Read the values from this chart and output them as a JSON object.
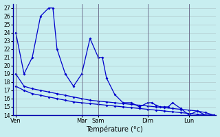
{
  "xlabel": "Température (°c)",
  "background_color": "#c8eef0",
  "grid_color": "#b0c8cc",
  "line_color": "#0000cc",
  "ylim": [
    14,
    27.5
  ],
  "yticks": [
    14,
    15,
    16,
    17,
    18,
    19,
    20,
    21,
    22,
    23,
    24,
    25,
    26,
    27
  ],
  "day_labels": [
    "Ven",
    "Mar",
    "Sam",
    "Dim",
    "Lun"
  ],
  "series1_x": [
    0,
    1,
    2,
    3,
    4,
    4.5,
    5,
    6,
    7,
    8,
    9,
    10,
    10.5,
    11,
    12,
    13,
    14,
    15,
    16,
    16.5,
    17,
    17.5,
    18,
    18.5,
    19,
    20,
    21,
    22,
    23,
    24
  ],
  "series1_y": [
    24,
    19,
    21,
    26,
    27,
    27,
    22,
    19,
    17.5,
    19,
    23.3,
    21,
    21,
    18.5,
    16.5,
    15.5,
    15.5,
    15,
    15.5,
    15.5,
    15.2,
    15,
    15,
    15,
    15.5,
    14.8,
    14,
    14.5,
    14,
    14
  ],
  "series2_x": [
    0,
    1,
    2,
    3,
    4,
    5,
    6,
    7,
    8,
    9,
    10,
    11,
    12,
    13,
    14,
    15,
    16,
    17,
    18,
    19,
    20,
    21,
    22,
    23,
    24
  ],
  "series2_y": [
    19,
    17.5,
    17.2,
    17,
    16.8,
    16.6,
    16.4,
    16.2,
    16,
    15.8,
    15.7,
    15.6,
    15.5,
    15.4,
    15.3,
    15.2,
    15.1,
    15,
    14.9,
    14.8,
    14.7,
    14.6,
    14.5,
    14.3,
    14
  ],
  "series3_x": [
    0,
    1,
    2,
    3,
    4,
    5,
    6,
    7,
    8,
    9,
    10,
    11,
    12,
    13,
    14,
    15,
    16,
    17,
    18,
    19,
    20,
    21,
    22,
    23,
    24
  ],
  "series3_y": [
    17.5,
    17,
    16.6,
    16.4,
    16.2,
    16,
    15.8,
    15.6,
    15.5,
    15.4,
    15.3,
    15.2,
    15.1,
    15.0,
    14.9,
    14.8,
    14.7,
    14.6,
    14.5,
    14.4,
    14.3,
    14.2,
    14.1,
    14.0,
    14.0
  ],
  "xtick_positions": [
    0,
    8,
    10,
    16,
    21
  ],
  "xtick_labels": [
    "Ven",
    "Mar",
    "Sam",
    "Dim",
    "Lun"
  ],
  "vline_positions": [
    0,
    8,
    10,
    16,
    21
  ]
}
